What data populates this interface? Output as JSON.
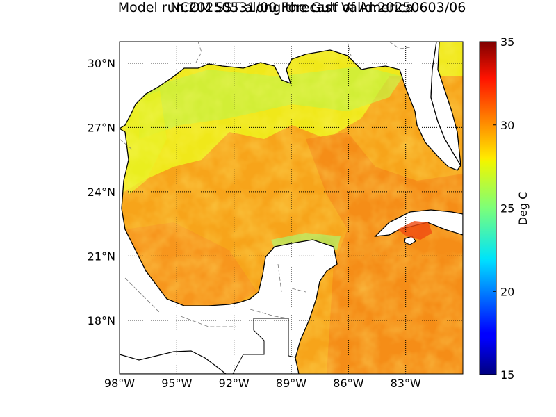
{
  "title_line1": "NCOM SST along the Gulf of America",
  "title_line2": "Model run:20250531/00 Forecast Valid:20250603/06",
  "map": {
    "lon_range": [
      -98,
      -80
    ],
    "lat_range": [
      15.5,
      31
    ],
    "lon_ticks": [
      {
        "value": -98,
        "label": "98°W"
      },
      {
        "value": -95,
        "label": "95°W"
      },
      {
        "value": -92,
        "label": "92°W"
      },
      {
        "value": -89,
        "label": "89°W"
      },
      {
        "value": -86,
        "label": "86°W"
      },
      {
        "value": -83,
        "label": "83°W"
      }
    ],
    "lat_ticks": [
      {
        "value": 30,
        "label": "30°N"
      },
      {
        "value": 27,
        "label": "27°N"
      },
      {
        "value": 24,
        "label": "24°N"
      },
      {
        "value": 21,
        "label": "21°N"
      },
      {
        "value": 18,
        "label": "18°N"
      }
    ],
    "gridlines": "dotted",
    "land_color": "#ffffff",
    "coastline_color": "#000000"
  },
  "colorbar": {
    "label": "Deg C",
    "min": 15,
    "max": 35,
    "ticks": [
      "15",
      "20",
      "25",
      "30",
      "35"
    ],
    "colormap": "jet"
  }
}
